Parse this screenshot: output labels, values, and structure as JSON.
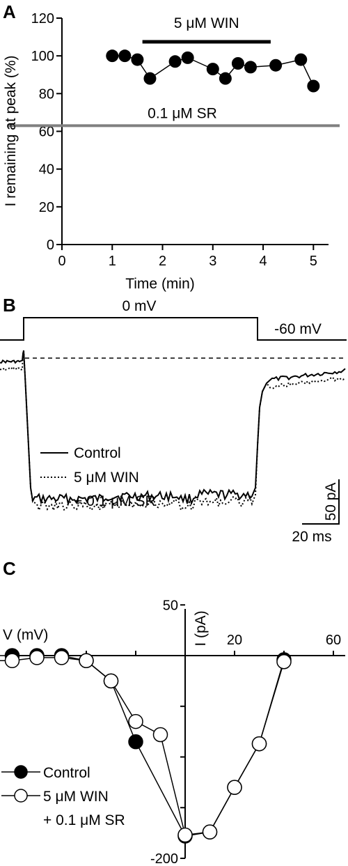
{
  "panels": {
    "A": {
      "letter": "A",
      "chart_data": {
        "type": "scatter",
        "xlabel": "Time (min)",
        "ylabel": "I remaining at peak (%)",
        "xlim": [
          0,
          5.3
        ],
        "ylim": [
          0,
          120
        ],
        "xticks": [
          "0",
          "1",
          "2",
          "3",
          "4",
          "5"
        ],
        "yticks": [
          "0",
          "20",
          "40",
          "60",
          "80",
          "100",
          "120"
        ],
        "x": [
          1.0,
          1.25,
          1.5,
          1.75,
          2.25,
          2.5,
          3.0,
          3.25,
          3.5,
          3.75,
          4.25,
          4.75,
          5.0
        ],
        "y": [
          100,
          100,
          98,
          88,
          97,
          99,
          93,
          88,
          96,
          94,
          95,
          98,
          84
        ],
        "win_label": "5 μM WIN",
        "win_range": [
          1.6,
          4.15
        ],
        "sr_label": "0.1 μM SR",
        "sr_level": 63,
        "sr_color": "#808080"
      }
    },
    "B": {
      "letter": "B",
      "chart_data": {
        "type": "line",
        "step_label_high": "0 mV",
        "step_label_low": "-60 mV",
        "scale_current": "50 pA",
        "scale_time": "20 ms",
        "series": [
          {
            "name": "Control",
            "style": "solid"
          },
          {
            "name": "5 μM WIN",
            "name_line2": "+ 0.1 μM SR",
            "style": "dotted"
          }
        ]
      }
    },
    "C": {
      "letter": "C",
      "chart_data": {
        "type": "line",
        "xlabel": "V (mV)",
        "ylabel": "I (pA)",
        "xlim": [
          -80,
          60
        ],
        "ylim": [
          -200,
          50
        ],
        "xticks": [
          "20",
          "60"
        ],
        "yticks": [
          "50",
          "-200"
        ],
        "series": [
          {
            "name": "Control",
            "marker": "filled",
            "x": [
              -80,
              -70,
              -60,
              -50,
              -40,
              -30,
              -20,
              0,
              10,
              20,
              30,
              40
            ],
            "y": [
              0,
              0,
              0,
              0,
              -5,
              -25,
              -85,
              -178,
              -174,
              -130,
              -87,
              -4
            ]
          },
          {
            "name": "5 μM WIN",
            "name_line2": "+ 0.1 μM SR",
            "marker": "open",
            "x": [
              -80,
              -70,
              -60,
              -50,
              -40,
              -30,
              -20,
              -10,
              0,
              10,
              20,
              30,
              40
            ],
            "y": [
              -5,
              -5,
              -2,
              -2,
              -5,
              -25,
              -65,
              -78,
              -177,
              -174,
              -130,
              -87,
              -6
            ]
          }
        ]
      }
    }
  }
}
